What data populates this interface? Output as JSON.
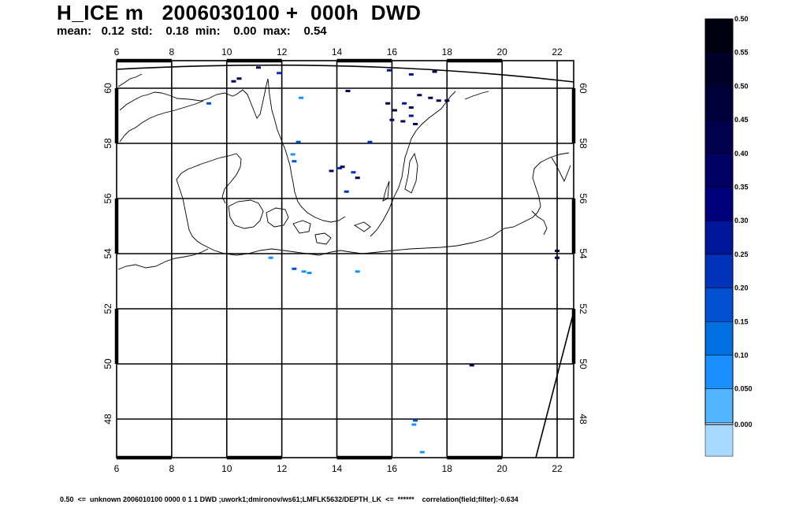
{
  "header": {
    "title": "H_ICE m   2006030100 +  000h  DWD",
    "stats": "mean:   0.12  std:    0.18  min:    0.00  max:    0.54"
  },
  "footer": {
    "text": "0.50  <=  unknown 2006010100 0000 0 1 1 DWD ;uwork1;dmironov/ws61;LMFLK5632/DEPTH_LK  <=  ******    correlation(field;filter):-0.634"
  },
  "map": {
    "lon_ticks": [
      "6",
      "8",
      "10",
      "12",
      "14",
      "16",
      "18",
      "20",
      "22"
    ],
    "lat_ticks": [
      "60",
      "58",
      "56",
      "54",
      "52",
      "50",
      "48"
    ],
    "lon_range": [
      6.0,
      22.6
    ],
    "lat_range": [
      46.6,
      61.0
    ],
    "ice_points": [
      {
        "lon": 10.45,
        "lat": 60.35,
        "v": 0.45
      },
      {
        "lon": 11.15,
        "lat": 60.75,
        "v": 0.4
      },
      {
        "lon": 10.25,
        "lat": 60.25,
        "v": 0.4
      },
      {
        "lon": 11.9,
        "lat": 60.55,
        "v": 0.3
      },
      {
        "lon": 14.4,
        "lat": 59.9,
        "v": 0.4
      },
      {
        "lon": 15.9,
        "lat": 60.65,
        "v": 0.35
      },
      {
        "lon": 16.7,
        "lat": 60.5,
        "v": 0.35
      },
      {
        "lon": 17.55,
        "lat": 60.6,
        "v": 0.45
      },
      {
        "lon": 17.0,
        "lat": 59.75,
        "v": 0.45
      },
      {
        "lon": 17.4,
        "lat": 59.65,
        "v": 0.5
      },
      {
        "lon": 17.7,
        "lat": 59.55,
        "v": 0.4
      },
      {
        "lon": 18.0,
        "lat": 59.55,
        "v": 0.45
      },
      {
        "lon": 15.85,
        "lat": 59.45,
        "v": 0.45
      },
      {
        "lon": 16.45,
        "lat": 59.45,
        "v": 0.35
      },
      {
        "lon": 16.7,
        "lat": 59.3,
        "v": 0.4
      },
      {
        "lon": 16.1,
        "lat": 59.2,
        "v": 0.5
      },
      {
        "lon": 16.0,
        "lat": 58.85,
        "v": 0.4
      },
      {
        "lon": 16.4,
        "lat": 58.8,
        "v": 0.45
      },
      {
        "lon": 16.85,
        "lat": 58.7,
        "v": 0.4
      },
      {
        "lon": 16.7,
        "lat": 59.0,
        "v": 0.35
      },
      {
        "lon": 15.2,
        "lat": 58.05,
        "v": 0.3
      },
      {
        "lon": 12.6,
        "lat": 58.05,
        "v": 0.2
      },
      {
        "lon": 12.7,
        "lat": 59.65,
        "v": 0.1
      },
      {
        "lon": 9.35,
        "lat": 59.45,
        "v": 0.2
      },
      {
        "lon": 12.4,
        "lat": 57.6,
        "v": 0.15
      },
      {
        "lon": 13.8,
        "lat": 57.0,
        "v": 0.4
      },
      {
        "lon": 14.1,
        "lat": 57.1,
        "v": 0.3
      },
      {
        "lon": 14.2,
        "lat": 57.15,
        "v": 0.4
      },
      {
        "lon": 14.75,
        "lat": 56.75,
        "v": 0.5
      },
      {
        "lon": 14.6,
        "lat": 56.95,
        "v": 0.3
      },
      {
        "lon": 14.35,
        "lat": 56.25,
        "v": 0.3
      },
      {
        "lon": 12.45,
        "lat": 57.35,
        "v": 0.2
      },
      {
        "lon": 22.0,
        "lat": 54.1,
        "v": 0.5
      },
      {
        "lon": 22.0,
        "lat": 53.85,
        "v": 0.45
      },
      {
        "lon": 12.45,
        "lat": 53.45,
        "v": 0.2
      },
      {
        "lon": 12.8,
        "lat": 53.35,
        "v": 0.15
      },
      {
        "lon": 13.0,
        "lat": 53.3,
        "v": 0.15
      },
      {
        "lon": 11.6,
        "lat": 53.85,
        "v": 0.1
      },
      {
        "lon": 14.75,
        "lat": 53.35,
        "v": 0.1
      },
      {
        "lon": 18.9,
        "lat": 49.95,
        "v": 0.45
      },
      {
        "lon": 16.8,
        "lat": 47.8,
        "v": 0.15
      },
      {
        "lon": 16.85,
        "lat": 47.95,
        "v": 0.2
      },
      {
        "lon": 17.1,
        "lat": 46.8,
        "v": 0.1
      }
    ]
  },
  "legend": {
    "labels": [
      "0.50",
      "0.55",
      "0.50",
      "0.45",
      "0.40",
      "0.35",
      "0.30",
      "0.25",
      "0.20",
      "0.15",
      "0.10",
      "0.050",
      "0.000"
    ],
    "colors": [
      "#000010",
      "#000028",
      "#00003c",
      "#00004c",
      "#000063",
      "#00007c",
      "#00159a",
      "#0033b8",
      "#0050d0",
      "#0070e0",
      "#1a90ff",
      "#50b4ff",
      "#a8d8ff",
      "#ffffff"
    ]
  }
}
